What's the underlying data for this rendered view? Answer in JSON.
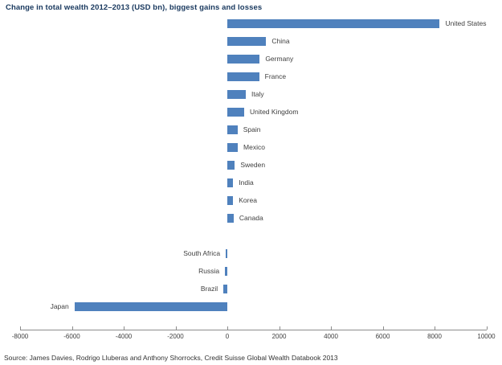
{
  "title": "Change in total wealth 2012–2013 (USD bn), biggest gains and losses",
  "source": "Source: James Davies, Rodrigo Lluberas and Anthony Shorrocks, Credit Suisse Global Wealth Databook 2013",
  "colors": {
    "bar": "#4f81bd",
    "title": "#17375d",
    "axis": "#8c8c8c",
    "label": "#404040"
  },
  "chart_data": {
    "type": "bar",
    "orientation": "horizontal",
    "title": "Change in total wealth 2012–2013 (USD bn), biggest gains and losses",
    "xlabel": "",
    "ylabel": "",
    "categories": [
      "United States",
      "China",
      "Germany",
      "France",
      "Italy",
      "United Kingdom",
      "Spain",
      "Mexico",
      "Sweden",
      "India",
      "Korea",
      "Canada",
      "South Africa",
      "Russia",
      "Brazil",
      "Japan"
    ],
    "values": [
      8200,
      1500,
      1250,
      1230,
      715,
      650,
      395,
      405,
      290,
      225,
      225,
      245,
      -60,
      -90,
      -150,
      -5900
    ],
    "xlim": [
      -8000,
      10000
    ],
    "xticks": [
      -8000,
      -6000,
      -4000,
      -2000,
      0,
      2000,
      4000,
      6000,
      8000,
      10000
    ],
    "grid": false,
    "legend": "none",
    "gap_after_index": 11
  }
}
